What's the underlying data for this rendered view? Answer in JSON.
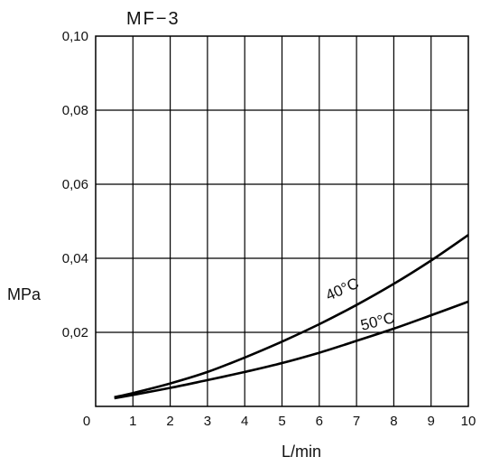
{
  "chart_data": {
    "type": "line",
    "title": "MF−3",
    "xlabel": "L/min",
    "ylabel": "MPa",
    "xlim": [
      0,
      10
    ],
    "ylim": [
      0,
      0.1
    ],
    "x_ticks": [
      "0",
      "1",
      "2",
      "3",
      "4",
      "5",
      "6",
      "7",
      "8",
      "9",
      "10"
    ],
    "y_ticks": [
      "0,02",
      "0,04",
      "0,06",
      "0,08",
      "0,10"
    ],
    "grid": true,
    "series": [
      {
        "name": "40°C",
        "x": [
          0.5,
          1,
          2,
          3,
          4,
          5,
          6,
          7,
          8,
          9,
          10
        ],
        "y": [
          0.0025,
          0.0036,
          0.0062,
          0.0093,
          0.0132,
          0.0175,
          0.0222,
          0.0274,
          0.0331,
          0.0394,
          0.0463
        ]
      },
      {
        "name": "50°C",
        "x": [
          0.5,
          1,
          2,
          3,
          4,
          5,
          6,
          7,
          8,
          9,
          10
        ],
        "y": [
          0.0022,
          0.0031,
          0.005,
          0.0071,
          0.0093,
          0.0117,
          0.0145,
          0.0177,
          0.021,
          0.0246,
          0.0283
        ]
      }
    ]
  }
}
